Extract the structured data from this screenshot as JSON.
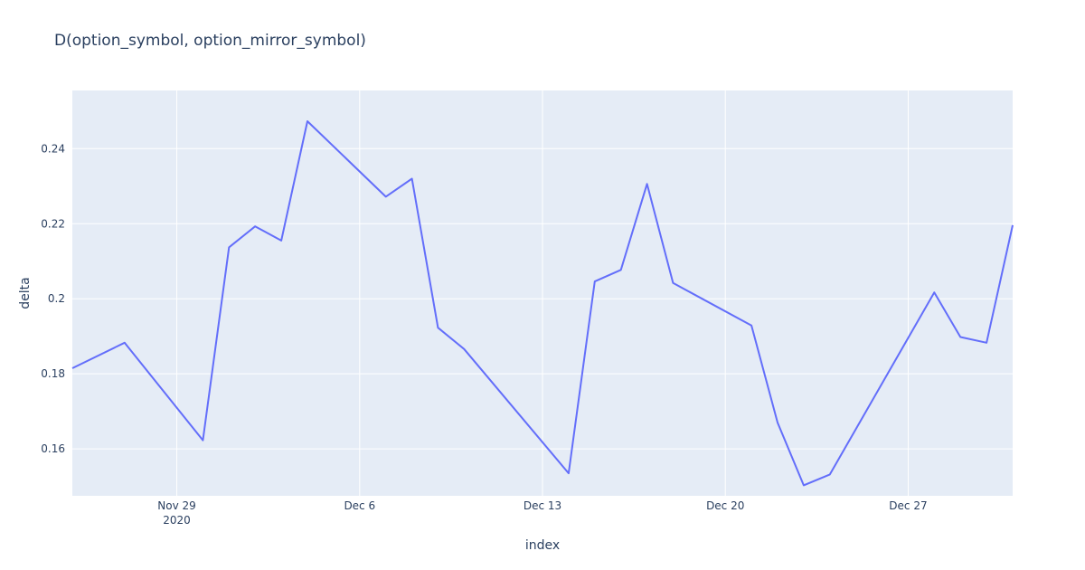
{
  "chart_data": {
    "type": "line",
    "title": "D(option_symbol, option_mirror_symbol)",
    "xlabel": "index",
    "ylabel": "delta",
    "x_range": [
      "2020-11-25",
      "2020-12-31"
    ],
    "ylim": [
      0.1475,
      0.2555
    ],
    "y_ticks": [
      0.16,
      0.18,
      0.2,
      0.22,
      0.24
    ],
    "y_tick_labels": [
      "0.16",
      "0.18",
      "0.2",
      "0.22",
      "0.24"
    ],
    "x_ticks": [
      {
        "date": "2020-11-29",
        "label": "Nov 29",
        "sublabel": "2020"
      },
      {
        "date": "2020-12-06",
        "label": "Dec 6",
        "sublabel": ""
      },
      {
        "date": "2020-12-13",
        "label": "Dec 13",
        "sublabel": ""
      },
      {
        "date": "2020-12-20",
        "label": "Dec 20",
        "sublabel": ""
      },
      {
        "date": "2020-12-27",
        "label": "Dec 27",
        "sublabel": ""
      }
    ],
    "grid": true,
    "line_color": "#636efa",
    "plot_bg": "#e5ecf6",
    "x": [
      "2020-11-25",
      "2020-11-27",
      "2020-11-30",
      "2020-12-01",
      "2020-12-02",
      "2020-12-03",
      "2020-12-04",
      "2020-12-07",
      "2020-12-08",
      "2020-12-09",
      "2020-12-10",
      "2020-12-14",
      "2020-12-15",
      "2020-12-16",
      "2020-12-17",
      "2020-12-18",
      "2020-12-21",
      "2020-12-22",
      "2020-12-23",
      "2020-12-24",
      "2020-12-28",
      "2020-12-29",
      "2020-12-30",
      "2020-12-31"
    ],
    "y": [
      0.1815,
      0.1883,
      0.1623,
      0.2137,
      0.2193,
      0.2155,
      0.2473,
      0.2272,
      0.232,
      0.1923,
      0.1866,
      0.1535,
      0.2046,
      0.2077,
      0.2306,
      0.2042,
      0.1929,
      0.167,
      0.1503,
      0.1532,
      0.2017,
      0.1898,
      0.1883,
      0.2196
    ]
  }
}
